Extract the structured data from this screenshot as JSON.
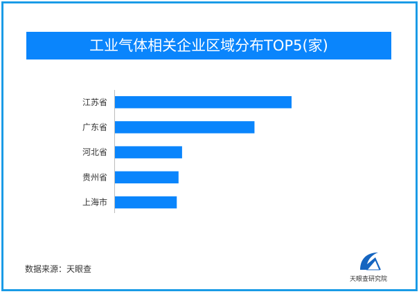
{
  "chart_data": {
    "type": "bar",
    "orientation": "horizontal",
    "title": "工业气体相关企业区域分布TOP5(家)",
    "categories": [
      "江苏省",
      "广东省",
      "河北省",
      "贵州省",
      "上海市"
    ],
    "values_relative_to_max": [
      1.0,
      0.79,
      0.38,
      0.36,
      0.35
    ],
    "xlabel": "",
    "ylabel": "",
    "grid": false,
    "bar_color": "#0a85fc"
  },
  "footer": {
    "source": "数据来源：天眼查",
    "logo_text": "天眼查研究院"
  },
  "colors": {
    "frame": "#1a9be6",
    "title_bg": "#0a85fc"
  }
}
